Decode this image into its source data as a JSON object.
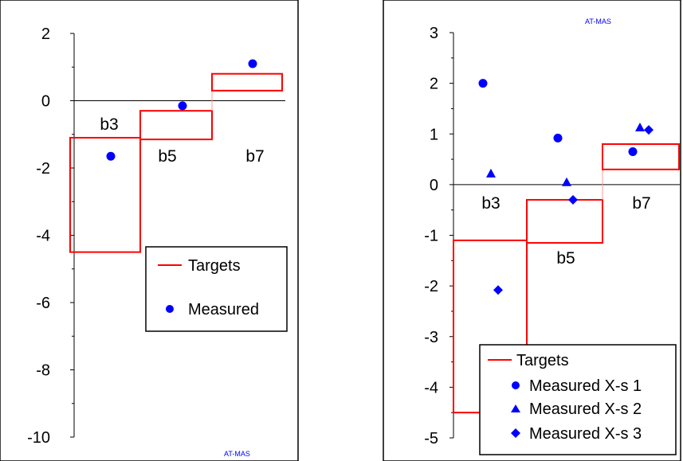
{
  "chart_data": [
    {
      "type": "step-target-scatter",
      "watermark": "AT-MAS",
      "ylim": [
        -10,
        2
      ],
      "yticks": [
        2,
        0,
        -2,
        -4,
        -6,
        -8,
        -10
      ],
      "categories": [
        "b3",
        "b5",
        "b7"
      ],
      "targets": [
        {
          "category": "b3",
          "low": -4.5,
          "high": -1.1
        },
        {
          "category": "b5",
          "low": -1.15,
          "high": -0.3
        },
        {
          "category": "b7",
          "low": 0.3,
          "high": 0.8
        }
      ],
      "series": [
        {
          "name": "Measured",
          "marker": "circle",
          "values": [
            -1.65,
            -0.15,
            1.1
          ]
        }
      ],
      "legend": [
        "Targets",
        "Measured"
      ],
      "legend_position": "right"
    },
    {
      "type": "step-target-scatter",
      "watermark": "AT-MAS",
      "ylim": [
        -5,
        3
      ],
      "yticks": [
        3,
        2,
        1,
        0,
        -1,
        -2,
        -3,
        -4,
        -5
      ],
      "categories": [
        "b3",
        "b5",
        "b7"
      ],
      "targets": [
        {
          "category": "b3",
          "low": -4.5,
          "high": -1.1
        },
        {
          "category": "b5",
          "low": -1.15,
          "high": -0.3
        },
        {
          "category": "b7",
          "low": 0.3,
          "high": 0.8
        }
      ],
      "series": [
        {
          "name": "Measured X-s 1",
          "marker": "circle",
          "values": [
            2.0,
            0.92,
            0.65
          ]
        },
        {
          "name": "Measured X-s 2",
          "marker": "triangle",
          "values": [
            0.22,
            0.05,
            1.13
          ]
        },
        {
          "name": "Measured X-s 3",
          "marker": "diamond",
          "values": [
            -2.08,
            -0.3,
            1.08
          ]
        }
      ],
      "legend": [
        "Targets",
        "Measured X-s 1",
        "Measured X-s 2",
        "Measured X-s 3"
      ],
      "legend_position": "bottom-right"
    }
  ],
  "colors": {
    "target": "#ff0000",
    "target_connector": "#ff9999",
    "marker": "#0000ff",
    "frame": "#000000"
  }
}
